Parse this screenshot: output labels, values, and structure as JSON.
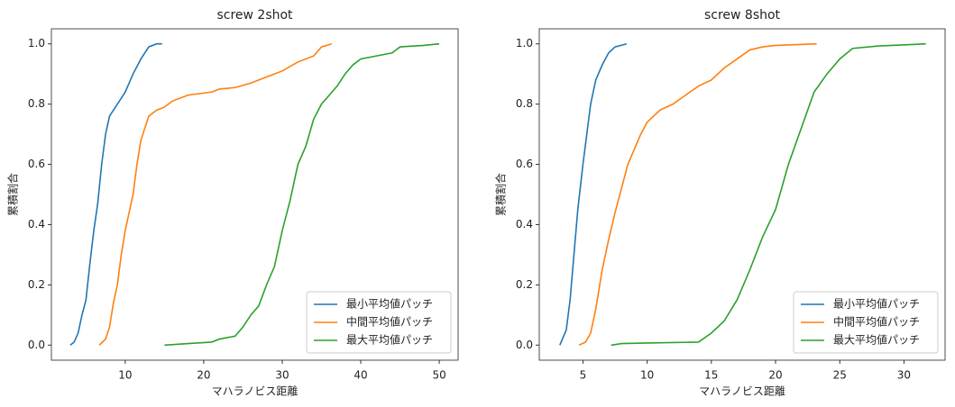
{
  "chart_data": [
    {
      "type": "line",
      "title": "screw 2shot",
      "x_label": "マハラノビス距離",
      "y_label": "累積割合",
      "xlim": [
        0.6,
        52.4
      ],
      "ylim": [
        -0.05,
        1.05
      ],
      "xticks": [
        10,
        20,
        30,
        40,
        50
      ],
      "yticks": [
        {
          "value": 0,
          "label": "0.0"
        },
        {
          "value": 0.2,
          "label": "0.2"
        },
        {
          "value": 0.4,
          "label": "0.4"
        },
        {
          "value": 0.6,
          "label": "0.6"
        },
        {
          "value": 0.8,
          "label": "0.8"
        },
        {
          "value": 1,
          "label": "1.0"
        }
      ],
      "legend": "lower right",
      "series": [
        {
          "name": "最小平均値パッチ",
          "color": "#1f77b4",
          "x": [
            3,
            3.5,
            4,
            4.5,
            5,
            5.5,
            6,
            6.5,
            7,
            7.5,
            8,
            9,
            10,
            11,
            12,
            13,
            14,
            14.7
          ],
          "values": [
            0,
            0.01,
            0.04,
            0.1,
            0.15,
            0.27,
            0.38,
            0.47,
            0.6,
            0.7,
            0.76,
            0.8,
            0.84,
            0.9,
            0.95,
            0.99,
            1.0,
            1.0
          ]
        },
        {
          "name": "中間平均値パッチ",
          "color": "#ff7f0e",
          "x": [
            6.7,
            7.5,
            8,
            8.5,
            9,
            9.5,
            10,
            11,
            11.5,
            12,
            13,
            14,
            15,
            16,
            18,
            21,
            22,
            24,
            26,
            28,
            30,
            32,
            34,
            35,
            36.3
          ],
          "values": [
            0,
            0.02,
            0.06,
            0.14,
            0.2,
            0.3,
            0.38,
            0.5,
            0.6,
            0.68,
            0.76,
            0.78,
            0.79,
            0.81,
            0.83,
            0.84,
            0.85,
            0.855,
            0.87,
            0.89,
            0.91,
            0.94,
            0.96,
            0.99,
            1.0
          ]
        },
        {
          "name": "最大平均値パッチ",
          "color": "#2ca02c",
          "x": [
            15,
            18,
            21,
            22,
            24,
            25,
            26,
            27,
            28,
            29,
            30,
            31,
            32,
            33,
            34,
            35,
            36,
            37,
            38,
            39,
            40,
            42,
            44,
            45,
            48,
            50
          ],
          "values": [
            0,
            0.005,
            0.01,
            0.02,
            0.03,
            0.06,
            0.1,
            0.13,
            0.2,
            0.26,
            0.38,
            0.48,
            0.6,
            0.66,
            0.75,
            0.8,
            0.83,
            0.86,
            0.9,
            0.93,
            0.95,
            0.96,
            0.97,
            0.99,
            0.995,
            1.0
          ]
        }
      ]
    },
    {
      "type": "line",
      "title": "screw 8shot",
      "x_label": "マハラノビス距離",
      "y_label": "累積割合",
      "xlim": [
        1.6,
        33.2
      ],
      "ylim": [
        -0.05,
        1.05
      ],
      "xticks": [
        5,
        10,
        15,
        20,
        25,
        30
      ],
      "yticks": [
        {
          "value": 0,
          "label": "0.0"
        },
        {
          "value": 0.2,
          "label": "0.2"
        },
        {
          "value": 0.4,
          "label": "0.4"
        },
        {
          "value": 0.6,
          "label": "0.6"
        },
        {
          "value": 0.8,
          "label": "0.8"
        },
        {
          "value": 1,
          "label": "1.0"
        }
      ],
      "legend": "lower right",
      "series": [
        {
          "name": "最小平均値パッチ",
          "color": "#1f77b4",
          "x": [
            3.2,
            3.7,
            4,
            4.3,
            4.6,
            5,
            5.3,
            5.6,
            6,
            6.5,
            7,
            7.5,
            8.4
          ],
          "values": [
            0,
            0.05,
            0.15,
            0.3,
            0.45,
            0.6,
            0.7,
            0.8,
            0.88,
            0.93,
            0.97,
            0.99,
            1.0
          ]
        },
        {
          "name": "中間平均値パッチ",
          "color": "#ff7f0e",
          "x": [
            4.7,
            5.2,
            5.6,
            6,
            6.5,
            7,
            7.5,
            8,
            8.5,
            9,
            9.5,
            10,
            11,
            12,
            13,
            14,
            15,
            16,
            17,
            18,
            19,
            20,
            23.2
          ],
          "values": [
            0,
            0.01,
            0.04,
            0.12,
            0.25,
            0.35,
            0.44,
            0.52,
            0.6,
            0.65,
            0.7,
            0.74,
            0.78,
            0.8,
            0.83,
            0.86,
            0.88,
            0.92,
            0.95,
            0.98,
            0.99,
            0.995,
            1.0
          ]
        },
        {
          "name": "最大平均値パッチ",
          "color": "#2ca02c",
          "x": [
            7.2,
            8,
            10,
            14,
            15,
            16,
            17,
            18,
            19,
            20,
            21,
            22,
            23,
            24,
            25,
            26,
            28,
            31.7
          ],
          "values": [
            0,
            0.005,
            0.007,
            0.01,
            0.04,
            0.08,
            0.15,
            0.25,
            0.36,
            0.45,
            0.6,
            0.72,
            0.84,
            0.9,
            0.95,
            0.985,
            0.993,
            1.0
          ]
        }
      ]
    }
  ]
}
